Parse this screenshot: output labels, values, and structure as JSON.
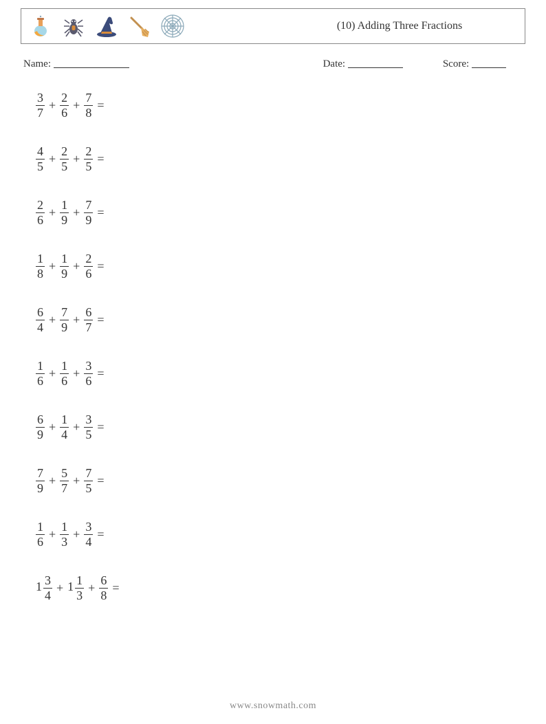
{
  "header": {
    "title": "(10) Adding Three Fractions",
    "icons": [
      "flask-icon",
      "spider-icon",
      "witch-hat-icon",
      "broom-icon",
      "spider-web-icon"
    ],
    "colors": {
      "flask_body": "#a7d8e8",
      "flask_liquid": "#f4a840",
      "flask_neck": "#e8a05a",
      "spider_body": "#5a5a6e",
      "spider_mark": "#d98c3a",
      "hat_main": "#3b4b7a",
      "hat_band": "#d98c3a",
      "broom_handle": "#c29050",
      "broom_bristle": "#e8b060",
      "web": "#8aa8b8"
    }
  },
  "meta": {
    "name_label": "Name:",
    "date_label": "Date:",
    "score_label": "Score:",
    "name_line_width": 110,
    "date_line_width": 80,
    "score_line_width": 50
  },
  "problems": [
    {
      "terms": [
        {
          "n": "3",
          "d": "7"
        },
        {
          "n": "2",
          "d": "6"
        },
        {
          "n": "7",
          "d": "8"
        }
      ]
    },
    {
      "terms": [
        {
          "n": "4",
          "d": "5"
        },
        {
          "n": "2",
          "d": "5"
        },
        {
          "n": "2",
          "d": "5"
        }
      ]
    },
    {
      "terms": [
        {
          "n": "2",
          "d": "6"
        },
        {
          "n": "1",
          "d": "9"
        },
        {
          "n": "7",
          "d": "9"
        }
      ]
    },
    {
      "terms": [
        {
          "n": "1",
          "d": "8"
        },
        {
          "n": "1",
          "d": "9"
        },
        {
          "n": "2",
          "d": "6"
        }
      ]
    },
    {
      "terms": [
        {
          "n": "6",
          "d": "4"
        },
        {
          "n": "7",
          "d": "9"
        },
        {
          "n": "6",
          "d": "7"
        }
      ]
    },
    {
      "terms": [
        {
          "n": "1",
          "d": "6"
        },
        {
          "n": "1",
          "d": "6"
        },
        {
          "n": "3",
          "d": "6"
        }
      ]
    },
    {
      "terms": [
        {
          "n": "6",
          "d": "9"
        },
        {
          "n": "1",
          "d": "4"
        },
        {
          "n": "3",
          "d": "5"
        }
      ]
    },
    {
      "terms": [
        {
          "n": "7",
          "d": "9"
        },
        {
          "n": "5",
          "d": "7"
        },
        {
          "n": "7",
          "d": "5"
        }
      ]
    },
    {
      "terms": [
        {
          "n": "1",
          "d": "6"
        },
        {
          "n": "1",
          "d": "3"
        },
        {
          "n": "3",
          "d": "4"
        }
      ]
    },
    {
      "terms": [
        {
          "w": "1",
          "n": "3",
          "d": "4"
        },
        {
          "w": "1",
          "n": "1",
          "d": "3"
        },
        {
          "n": "6",
          "d": "8"
        }
      ]
    }
  ],
  "symbols": {
    "plus": "+",
    "equals": "="
  },
  "footer": {
    "text": "www.snowmath.com"
  },
  "style": {
    "page_bg": "#ffffff",
    "text_color": "#333333",
    "border_color": "#888888",
    "footer_color": "#888888",
    "font_family": "Georgia, Times New Roman, serif",
    "title_fontsize": 16,
    "meta_fontsize": 15,
    "problem_fontsize": 18,
    "footer_fontsize": 14,
    "problem_row_height": 46,
    "problem_row_gap": 32
  }
}
